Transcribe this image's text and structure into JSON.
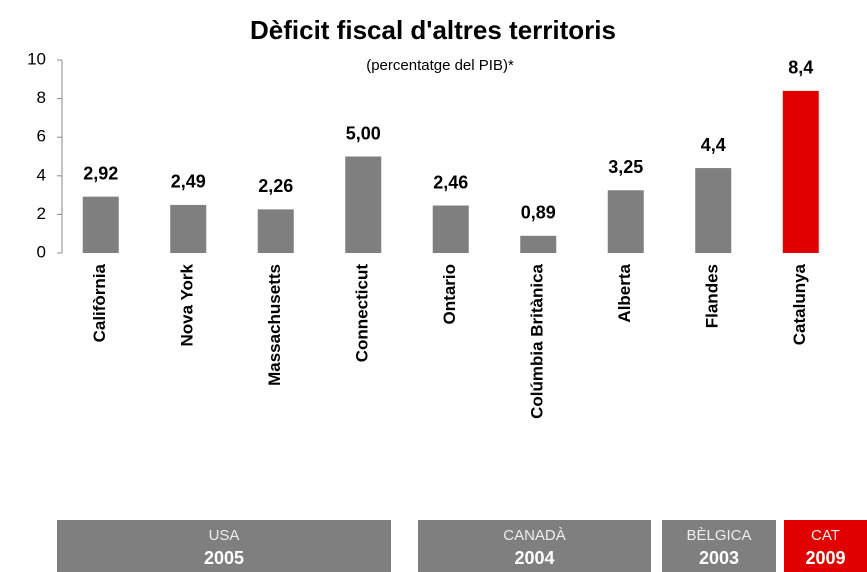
{
  "chart_data": {
    "type": "bar",
    "title": "Dèficit fiscal d'altres territoris",
    "subtitle": "(percentatge del PIB)*",
    "categories": [
      "Califòrnia",
      "Nova York",
      "Massachusetts",
      "Connecticut",
      "Ontario",
      "Colúmbia Britànica",
      "Alberta",
      "Flandes",
      "Catalunya"
    ],
    "values": [
      2.92,
      2.49,
      2.26,
      5.0,
      2.46,
      0.89,
      3.25,
      4.4,
      8.4
    ],
    "value_labels": [
      "2,92",
      "2,49",
      "2,26",
      "5,00",
      "2,46",
      "0,89",
      "3,25",
      "4,4",
      "8,4"
    ],
    "colors": [
      "#7f7f7f",
      "#7f7f7f",
      "#7f7f7f",
      "#7f7f7f",
      "#7f7f7f",
      "#7f7f7f",
      "#7f7f7f",
      "#7f7f7f",
      "#e00000"
    ],
    "ylim": [
      0,
      10
    ],
    "yticks": [
      0,
      2,
      4,
      6,
      8,
      10
    ],
    "grid": false,
    "groups": [
      {
        "name": "USA",
        "year": "2005",
        "color": "#7f7f7f"
      },
      {
        "name": "CANADÀ",
        "year": "2004",
        "color": "#7f7f7f"
      },
      {
        "name": "BÈLGICA",
        "year": "2003",
        "color": "#7f7f7f"
      },
      {
        "name": "CAT",
        "year": "2009",
        "color": "#e00000"
      }
    ]
  }
}
